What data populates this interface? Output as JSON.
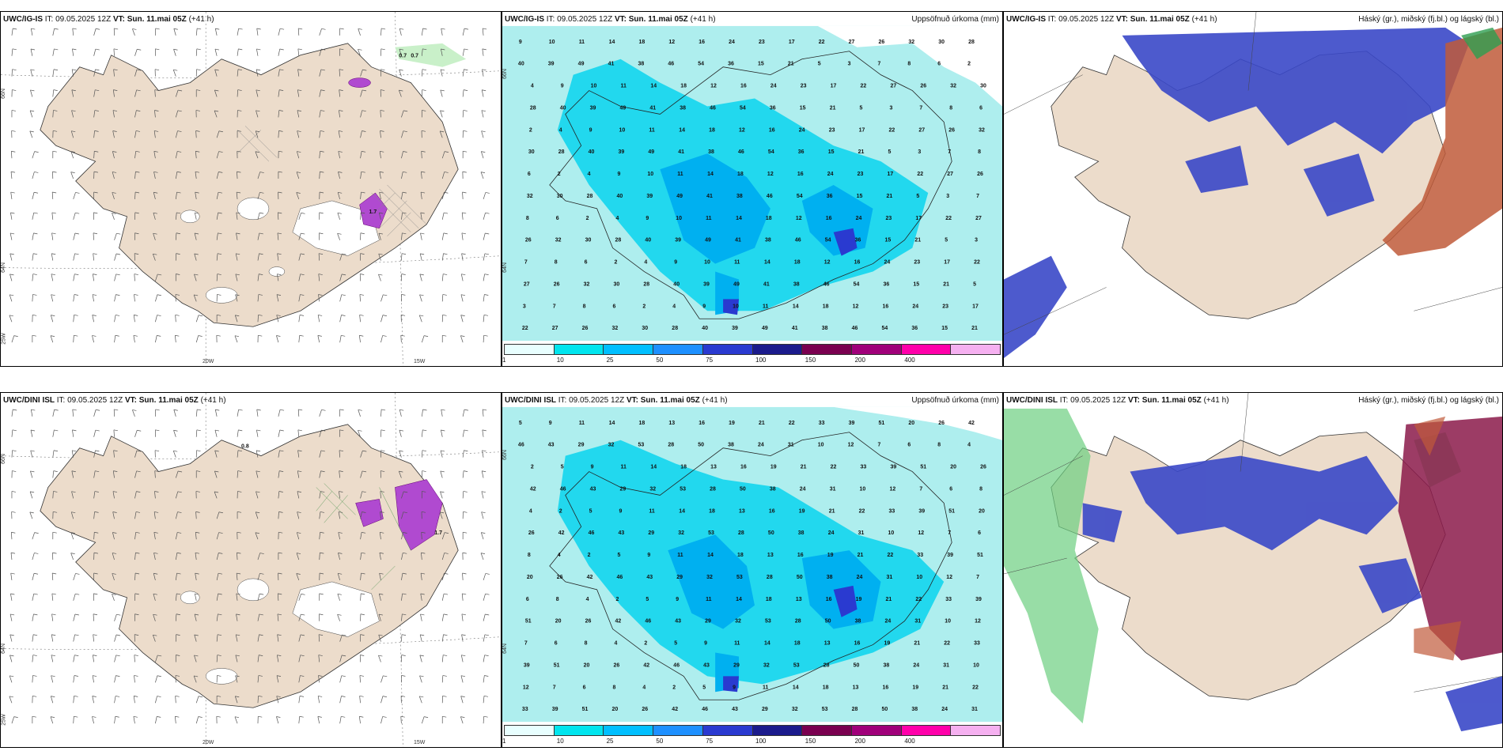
{
  "panels": [
    {
      "model": "UWC/IG-IS",
      "it": "IT: 09.05.2025 12Z",
      "vt": "VT: Sun. 11.mai 05Z",
      "lead": "(+41 h)",
      "title": "",
      "lon": [
        "20W",
        "15W"
      ],
      "lat": [
        "66N",
        "64N",
        "25W"
      ]
    },
    {
      "model": "UWC/IG-IS",
      "it": "IT: 09.05.2025 12Z",
      "vt": "VT: Sun. 11.mai 05Z",
      "lead": "(+41 h)",
      "title": "Uppsöfnuð úrkoma (mm)",
      "lat": [
        "66N",
        "64N"
      ]
    },
    {
      "model": "UWC/IG-IS",
      "it": "IT: 09.05.2025 12Z",
      "vt": "VT: Sun. 11.mai 05Z",
      "lead": "(+41 h)",
      "title": "Háský (gr.), miðský (fj.bl.) og lágský (bl.)"
    },
    {
      "model": "UWC/DINI ISL",
      "it": "IT: 09.05.2025 12Z",
      "vt": "VT: Sun. 11.mai 05Z",
      "lead": "(+41 h)",
      "title": "",
      "lon": [
        "20W",
        "15W"
      ],
      "lat": [
        "66N",
        "64N",
        "25W"
      ]
    },
    {
      "model": "UWC/DINI ISL",
      "it": "IT: 09.05.2025 12Z",
      "vt": "VT: Sun. 11.mai 05Z",
      "lead": "(+41 h)",
      "title": "Uppsöfnuð úrkoma (mm)",
      "lat": [
        "66N",
        "64N"
      ]
    },
    {
      "model": "UWC/DINI ISL",
      "it": "IT: 09.05.2025 12Z",
      "vt": "VT: Sun. 11.mai 05Z",
      "lead": "(+41 h)",
      "title": "Háský (gr.), miðský (fj.bl.) og lágský (bl.)"
    }
  ],
  "colorbar": {
    "labels": [
      "1",
      "10",
      "25",
      "50",
      "75",
      "100",
      "150",
      "200",
      "400"
    ],
    "colors": [
      "#e8ffff",
      "#00e5ee",
      "#00bfff",
      "#1e90ff",
      "#2a3ad0",
      "#1b1b8c",
      "#7a0050",
      "#a0007a",
      "#ff00aa",
      "#f5b0f0"
    ]
  },
  "wind_panel_values": {
    "top": [
      "0.7",
      "0.7",
      "1.7"
    ],
    "bottom": [
      "0.8",
      "1.7"
    ]
  },
  "precip_values": {
    "top": [
      "9",
      "10",
      "11",
      "14",
      "18",
      "12",
      "16",
      "24",
      "23",
      "17",
      "22",
      "27",
      "26",
      "32",
      "30",
      "28",
      "40",
      "39",
      "49",
      "41",
      "38",
      "46",
      "54",
      "36",
      "15",
      "21",
      "5",
      "3",
      "7",
      "8",
      "6",
      "2",
      "4"
    ],
    "bottom": [
      "5",
      "9",
      "11",
      "14",
      "18",
      "13",
      "16",
      "19",
      "21",
      "22",
      "33",
      "39",
      "51",
      "20",
      "26",
      "42",
      "46",
      "43",
      "29",
      "32",
      "53",
      "28",
      "50",
      "38",
      "24",
      "31",
      "10",
      "12",
      "7",
      "6",
      "8",
      "4",
      "2"
    ]
  },
  "colors": {
    "land": "#ecdccb",
    "sea_precip": "#aeeeee",
    "precip_mid": "#22d8ee",
    "precip_high": "#00b0f0",
    "cloud_low": "#3a48c8",
    "cloud_mid": "#c05a3a",
    "cloud_high": "#2e9e50"
  }
}
